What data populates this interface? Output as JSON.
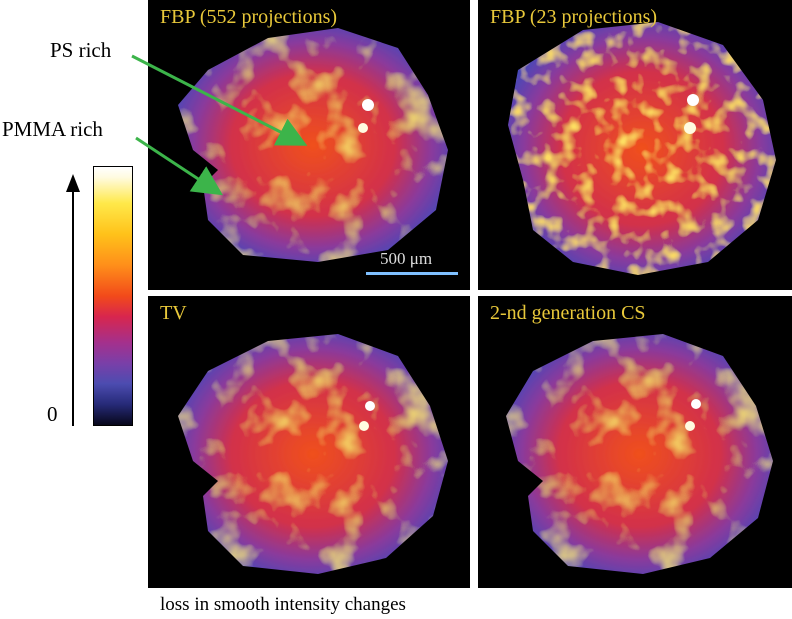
{
  "annotations": {
    "ps_rich": "PS rich",
    "pmma_rich": "PMMA rich",
    "arrow_color": "#3cb44a"
  },
  "colorbar": {
    "min_label": "0",
    "colormap": "hot-blue-purple"
  },
  "panels": [
    {
      "title": "FBP (552 projections)"
    },
    {
      "title": "FBP (23 projections)"
    },
    {
      "title": "TV"
    },
    {
      "title": "2-nd generation CS"
    }
  ],
  "scalebar": {
    "label": "500 μm"
  },
  "caption": "loss in smooth intensity changes",
  "colors": {
    "title_text": "#e8c83a",
    "scalebar": "#7fc0ff",
    "panel_background": "#000000"
  }
}
